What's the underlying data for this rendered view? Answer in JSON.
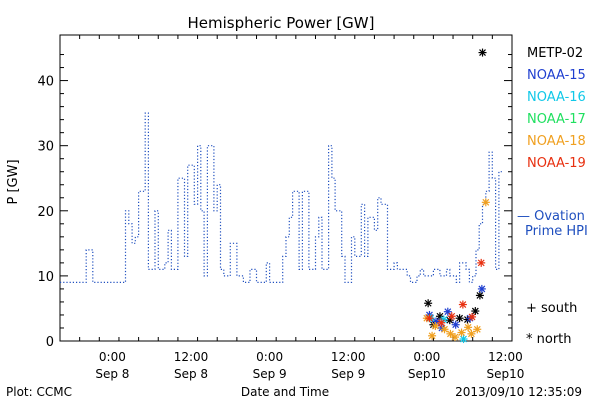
{
  "chart_data": {
    "type": "line",
    "title": "Hemispheric Power [GW]",
    "ylabel": "P [GW]",
    "xlabel": "Date and Time",
    "ylim": [
      0,
      47
    ],
    "yticks": [
      0,
      10,
      20,
      30,
      40
    ],
    "x_unit": "hours since 2013-09-07 00:00 UT",
    "xlim": [
      16,
      85
    ],
    "xticks": [
      {
        "x": 24,
        "time": "0:00",
        "date": "Sep 8"
      },
      {
        "x": 36,
        "time": "12:00",
        "date": "Sep 8"
      },
      {
        "x": 48,
        "time": "0:00",
        "date": "Sep 9"
      },
      {
        "x": 60,
        "time": "12:00",
        "date": "Sep 9"
      },
      {
        "x": 72,
        "time": "0:00",
        "date": "Sep10"
      },
      {
        "x": 84,
        "time": "12:00",
        "date": "Sep10"
      }
    ],
    "series": [
      {
        "name": "Ovation Prime HPI",
        "style": "dotted-step",
        "color": "#1f4fbf",
        "points": [
          [
            16,
            9
          ],
          [
            20,
            9
          ],
          [
            20,
            14
          ],
          [
            21,
            14
          ],
          [
            21,
            9
          ],
          [
            26,
            9
          ],
          [
            26,
            20
          ],
          [
            26.5,
            20
          ],
          [
            26.5,
            18
          ],
          [
            27,
            18
          ],
          [
            27,
            15
          ],
          [
            27.5,
            15
          ],
          [
            27.5,
            16
          ],
          [
            28,
            16
          ],
          [
            28,
            23
          ],
          [
            29,
            23
          ],
          [
            29,
            35
          ],
          [
            29.5,
            35
          ],
          [
            29.5,
            11
          ],
          [
            30.5,
            11
          ],
          [
            30.5,
            20
          ],
          [
            31,
            20
          ],
          [
            31,
            11
          ],
          [
            32,
            11
          ],
          [
            32,
            12
          ],
          [
            32.5,
            12
          ],
          [
            32.5,
            17
          ],
          [
            33,
            17
          ],
          [
            33,
            11
          ],
          [
            34,
            11
          ],
          [
            34,
            25
          ],
          [
            35,
            25
          ],
          [
            35,
            13
          ],
          [
            35.5,
            13
          ],
          [
            35.5,
            27
          ],
          [
            36.5,
            27
          ],
          [
            36.5,
            21
          ],
          [
            37,
            21
          ],
          [
            37,
            30
          ],
          [
            37.5,
            30
          ],
          [
            37.5,
            20
          ],
          [
            38,
            20
          ],
          [
            38,
            10
          ],
          [
            38.5,
            10
          ],
          [
            38.5,
            30
          ],
          [
            39.5,
            30
          ],
          [
            39.5,
            20
          ],
          [
            40,
            20
          ],
          [
            40,
            24
          ],
          [
            40.5,
            24
          ],
          [
            40.5,
            11
          ],
          [
            41,
            11
          ],
          [
            41,
            10
          ],
          [
            42,
            10
          ],
          [
            42,
            15
          ],
          [
            43,
            15
          ],
          [
            43,
            10
          ],
          [
            44,
            10
          ],
          [
            44,
            9
          ],
          [
            45,
            9
          ],
          [
            45,
            11
          ],
          [
            46,
            11
          ],
          [
            46,
            9
          ],
          [
            47.5,
            9
          ],
          [
            47.5,
            12
          ],
          [
            48,
            12
          ],
          [
            48,
            9
          ],
          [
            50,
            9
          ],
          [
            50,
            13
          ],
          [
            50.5,
            13
          ],
          [
            50.5,
            16
          ],
          [
            51,
            16
          ],
          [
            51,
            19
          ],
          [
            51.5,
            19
          ],
          [
            51.5,
            23
          ],
          [
            52.5,
            23
          ],
          [
            52.5,
            11
          ],
          [
            53,
            11
          ],
          [
            53,
            23
          ],
          [
            54,
            23
          ],
          [
            54,
            11
          ],
          [
            55,
            11
          ],
          [
            55,
            16
          ],
          [
            55.5,
            16
          ],
          [
            55.5,
            19
          ],
          [
            56,
            19
          ],
          [
            56,
            11
          ],
          [
            57,
            11
          ],
          [
            57,
            30
          ],
          [
            57.5,
            30
          ],
          [
            57.5,
            25
          ],
          [
            58,
            25
          ],
          [
            58,
            20
          ],
          [
            59,
            20
          ],
          [
            59,
            13
          ],
          [
            59.5,
            13
          ],
          [
            59.5,
            9
          ],
          [
            60.5,
            9
          ],
          [
            60.5,
            16
          ],
          [
            61,
            16
          ],
          [
            61,
            13
          ],
          [
            62,
            13
          ],
          [
            62,
            21
          ],
          [
            62.5,
            21
          ],
          [
            62.5,
            13
          ],
          [
            63,
            13
          ],
          [
            63,
            19
          ],
          [
            64,
            19
          ],
          [
            64,
            17
          ],
          [
            64.5,
            17
          ],
          [
            64.5,
            22
          ],
          [
            65,
            22
          ],
          [
            65,
            21
          ],
          [
            66,
            21
          ],
          [
            66,
            11
          ],
          [
            67,
            11
          ],
          [
            67,
            12
          ],
          [
            67.5,
            12
          ],
          [
            67.5,
            11
          ],
          [
            69,
            11
          ],
          [
            69,
            10
          ],
          [
            69.5,
            10
          ],
          [
            69.5,
            9
          ],
          [
            70.5,
            9
          ],
          [
            70.5,
            10
          ],
          [
            71,
            10
          ],
          [
            71,
            11
          ],
          [
            71.5,
            11
          ],
          [
            71.5,
            10
          ],
          [
            73,
            10
          ],
          [
            73,
            11
          ],
          [
            74,
            11
          ],
          [
            74,
            10
          ],
          [
            75,
            10
          ],
          [
            75,
            11
          ],
          [
            75.5,
            11
          ],
          [
            75.5,
            10
          ],
          [
            76.5,
            10
          ],
          [
            76.5,
            9
          ],
          [
            77,
            9
          ],
          [
            77,
            12
          ],
          [
            78,
            12
          ],
          [
            78,
            11
          ],
          [
            78.5,
            11
          ],
          [
            78.5,
            9
          ],
          [
            79,
            9
          ],
          [
            79,
            10
          ],
          [
            79.5,
            10
          ],
          [
            79.5,
            14
          ],
          [
            80,
            14
          ],
          [
            80,
            18
          ],
          [
            80.5,
            18
          ],
          [
            80.5,
            21
          ],
          [
            81,
            21
          ],
          [
            81,
            23
          ],
          [
            81.5,
            23
          ],
          [
            81.5,
            29
          ],
          [
            82,
            29
          ],
          [
            82,
            25
          ],
          [
            82.5,
            25
          ],
          [
            82.5,
            11
          ],
          [
            83,
            11
          ],
          [
            83,
            26
          ],
          [
            83.5,
            26
          ]
        ]
      },
      {
        "name": "METP-02",
        "style": "markers",
        "color": "#000000",
        "points": [
          [
            72.2,
            5.8
          ],
          [
            73,
            2.5
          ],
          [
            74,
            3.8
          ],
          [
            75.5,
            3.2
          ],
          [
            77,
            3.5
          ],
          [
            78.2,
            3.3
          ],
          [
            79.4,
            4.6
          ],
          [
            80.1,
            7
          ],
          [
            80.5,
            44.3
          ]
        ]
      },
      {
        "name": "NOAA-15",
        "style": "markers",
        "color": "#1f3fd0",
        "points": [
          [
            72.4,
            4
          ],
          [
            73.4,
            3
          ],
          [
            74.3,
            2
          ],
          [
            75.2,
            4.5
          ],
          [
            76.4,
            2.5
          ],
          [
            78.6,
            3.5
          ],
          [
            80.4,
            8
          ]
        ]
      },
      {
        "name": "NOAA-16",
        "style": "markers",
        "color": "#10c8e8",
        "points": [
          [
            72.6,
            3.5
          ],
          [
            74.6,
            3.3
          ],
          [
            77.6,
            0.3
          ]
        ]
      },
      {
        "name": "NOAA-17",
        "style": "markers",
        "color": "#20e060",
        "points": []
      },
      {
        "name": "NOAA-18",
        "style": "markers",
        "color": "#f0a020",
        "points": [
          [
            72,
            3.5
          ],
          [
            72.8,
            0.8
          ],
          [
            73.3,
            2.3
          ],
          [
            74.7,
            1.8
          ],
          [
            75.6,
            1.1
          ],
          [
            76.3,
            0.6
          ],
          [
            77.3,
            1.3
          ],
          [
            78.3,
            2.1
          ],
          [
            78.8,
            1.1
          ],
          [
            79.7,
            1.8
          ],
          [
            81,
            21.3
          ]
        ]
      },
      {
        "name": "NOAA-19",
        "style": "markers",
        "color": "#e83010",
        "points": [
          [
            72.4,
            3.5
          ],
          [
            74.2,
            2.8
          ],
          [
            75.8,
            3.8
          ],
          [
            77.5,
            5.6
          ],
          [
            78.9,
            3.7
          ],
          [
            80.3,
            12
          ]
        ]
      }
    ],
    "legend": {
      "placement": "right",
      "items": [
        "METP-02",
        "NOAA-15",
        "NOAA-16",
        "NOAA-17",
        "NOAA-18",
        "NOAA-19"
      ],
      "hpi_line1": "— Ovation",
      "hpi_line2": "Prime HPI",
      "south": "+ south",
      "north": "* north"
    }
  },
  "footer": {
    "left": "Plot: CCMC",
    "center": "Date and Time",
    "right": "2013/09/10 12:35:09"
  }
}
